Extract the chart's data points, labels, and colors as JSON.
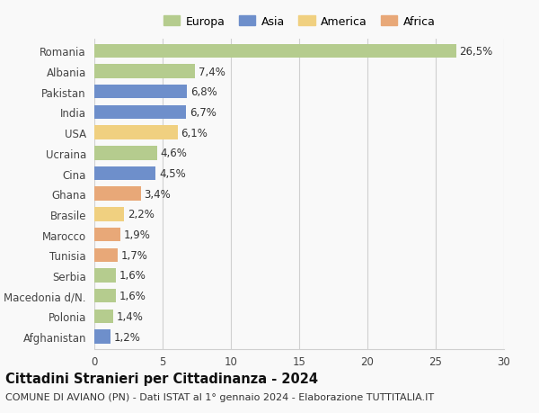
{
  "categories": [
    "Romania",
    "Albania",
    "Pakistan",
    "India",
    "USA",
    "Ucraina",
    "Cina",
    "Ghana",
    "Brasile",
    "Marocco",
    "Tunisia",
    "Serbia",
    "Macedonia d/N.",
    "Polonia",
    "Afghanistan"
  ],
  "values": [
    26.5,
    7.4,
    6.8,
    6.7,
    6.1,
    4.6,
    4.5,
    3.4,
    2.2,
    1.9,
    1.7,
    1.6,
    1.6,
    1.4,
    1.2
  ],
  "labels": [
    "26,5%",
    "7,4%",
    "6,8%",
    "6,7%",
    "6,1%",
    "4,6%",
    "4,5%",
    "3,4%",
    "2,2%",
    "1,9%",
    "1,7%",
    "1,6%",
    "1,6%",
    "1,4%",
    "1,2%"
  ],
  "colors": [
    "#b5cc8e",
    "#b5cc8e",
    "#6e8fcb",
    "#6e8fcb",
    "#f0d080",
    "#b5cc8e",
    "#6e8fcb",
    "#e8a878",
    "#f0d080",
    "#e8a878",
    "#e8a878",
    "#b5cc8e",
    "#b5cc8e",
    "#b5cc8e",
    "#6e8fcb"
  ],
  "legend_labels": [
    "Europa",
    "Asia",
    "America",
    "Africa"
  ],
  "legend_colors": [
    "#b5cc8e",
    "#6e8fcb",
    "#f0d080",
    "#e8a878"
  ],
  "xlim": [
    0,
    30
  ],
  "xticks": [
    0,
    5,
    10,
    15,
    20,
    25,
    30
  ],
  "title": "Cittadini Stranieri per Cittadinanza - 2024",
  "subtitle": "COMUNE DI AVIANO (PN) - Dati ISTAT al 1° gennaio 2024 - Elaborazione TUTTITALIA.IT",
  "background_color": "#f9f9f9",
  "grid_color": "#d0d0d0",
  "bar_height": 0.68,
  "label_fontsize": 8.5,
  "tick_fontsize": 8.5,
  "title_fontsize": 10.5,
  "subtitle_fontsize": 8.0
}
